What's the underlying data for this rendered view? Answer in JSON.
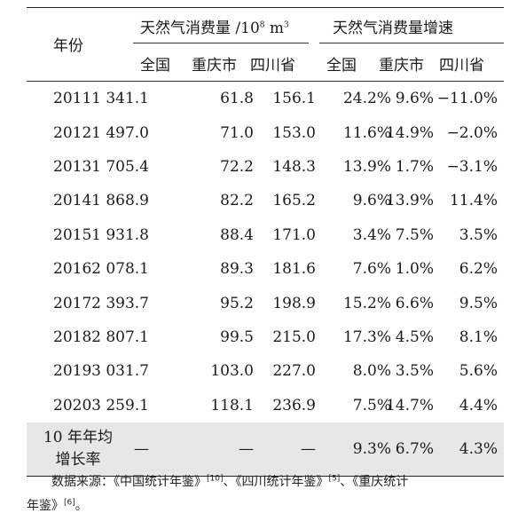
{
  "header": {
    "year_label": "年份",
    "group1_label": "天然气消费量 /10",
    "group1_exp": "8",
    "group1_unit": " m",
    "group1_unit_exp": "3",
    "group2_label": "天然气消费量增速",
    "sub": [
      "全国",
      "重庆市",
      "四川省",
      "全国",
      "重庆市",
      "四川省"
    ]
  },
  "rows": [
    {
      "year": "2011",
      "v": [
        "1 341.1",
        "61.8",
        "156.1",
        "24.2%",
        "9.6%",
        "−11.0%"
      ]
    },
    {
      "year": "2012",
      "v": [
        "1 497.0",
        "71.0",
        "153.0",
        "11.6%",
        "14.9%",
        "−2.0%"
      ]
    },
    {
      "year": "2013",
      "v": [
        "1 705.4",
        "72.2",
        "148.3",
        "13.9%",
        "1.7%",
        "−3.1%"
      ]
    },
    {
      "year": "2014",
      "v": [
        "1 868.9",
        "82.2",
        "165.2",
        "9.6%",
        "13.9%",
        "11.4%"
      ]
    },
    {
      "year": "2015",
      "v": [
        "1 931.8",
        "88.4",
        "171.0",
        "3.4%",
        "7.5%",
        "3.5%"
      ]
    },
    {
      "year": "2016",
      "v": [
        "2 078.1",
        "89.3",
        "181.6",
        "7.6%",
        "1.0%",
        "6.2%"
      ]
    },
    {
      "year": "2017",
      "v": [
        "2 393.7",
        "95.2",
        "198.9",
        "15.2%",
        "6.6%",
        "9.5%"
      ]
    },
    {
      "year": "2018",
      "v": [
        "2 807.1",
        "99.5",
        "215.0",
        "17.3%",
        "4.5%",
        "8.1%"
      ]
    },
    {
      "year": "2019",
      "v": [
        "3 031.7",
        "103.0",
        "227.0",
        "8.0%",
        "3.5%",
        "5.6%"
      ]
    },
    {
      "year": "2020",
      "v": [
        "3 259.1",
        "118.1",
        "236.9",
        "7.5%",
        "14.7%",
        "4.4%"
      ]
    }
  ],
  "average": {
    "label_line1": "10 年年均",
    "label_line2": "增长率",
    "v": [
      "—",
      "—",
      "—",
      "9.3%",
      "6.7%",
      "4.3%"
    ]
  },
  "footnote": {
    "prefix": "数据来源：《中国统计年鉴》",
    "ref1": "[10]",
    "mid1": "、《四川统计年鉴》",
    "ref2": "[5]",
    "mid2": "、《重庆统计",
    "line2": "年鉴》",
    "ref3": "[6]",
    "end": "。"
  }
}
